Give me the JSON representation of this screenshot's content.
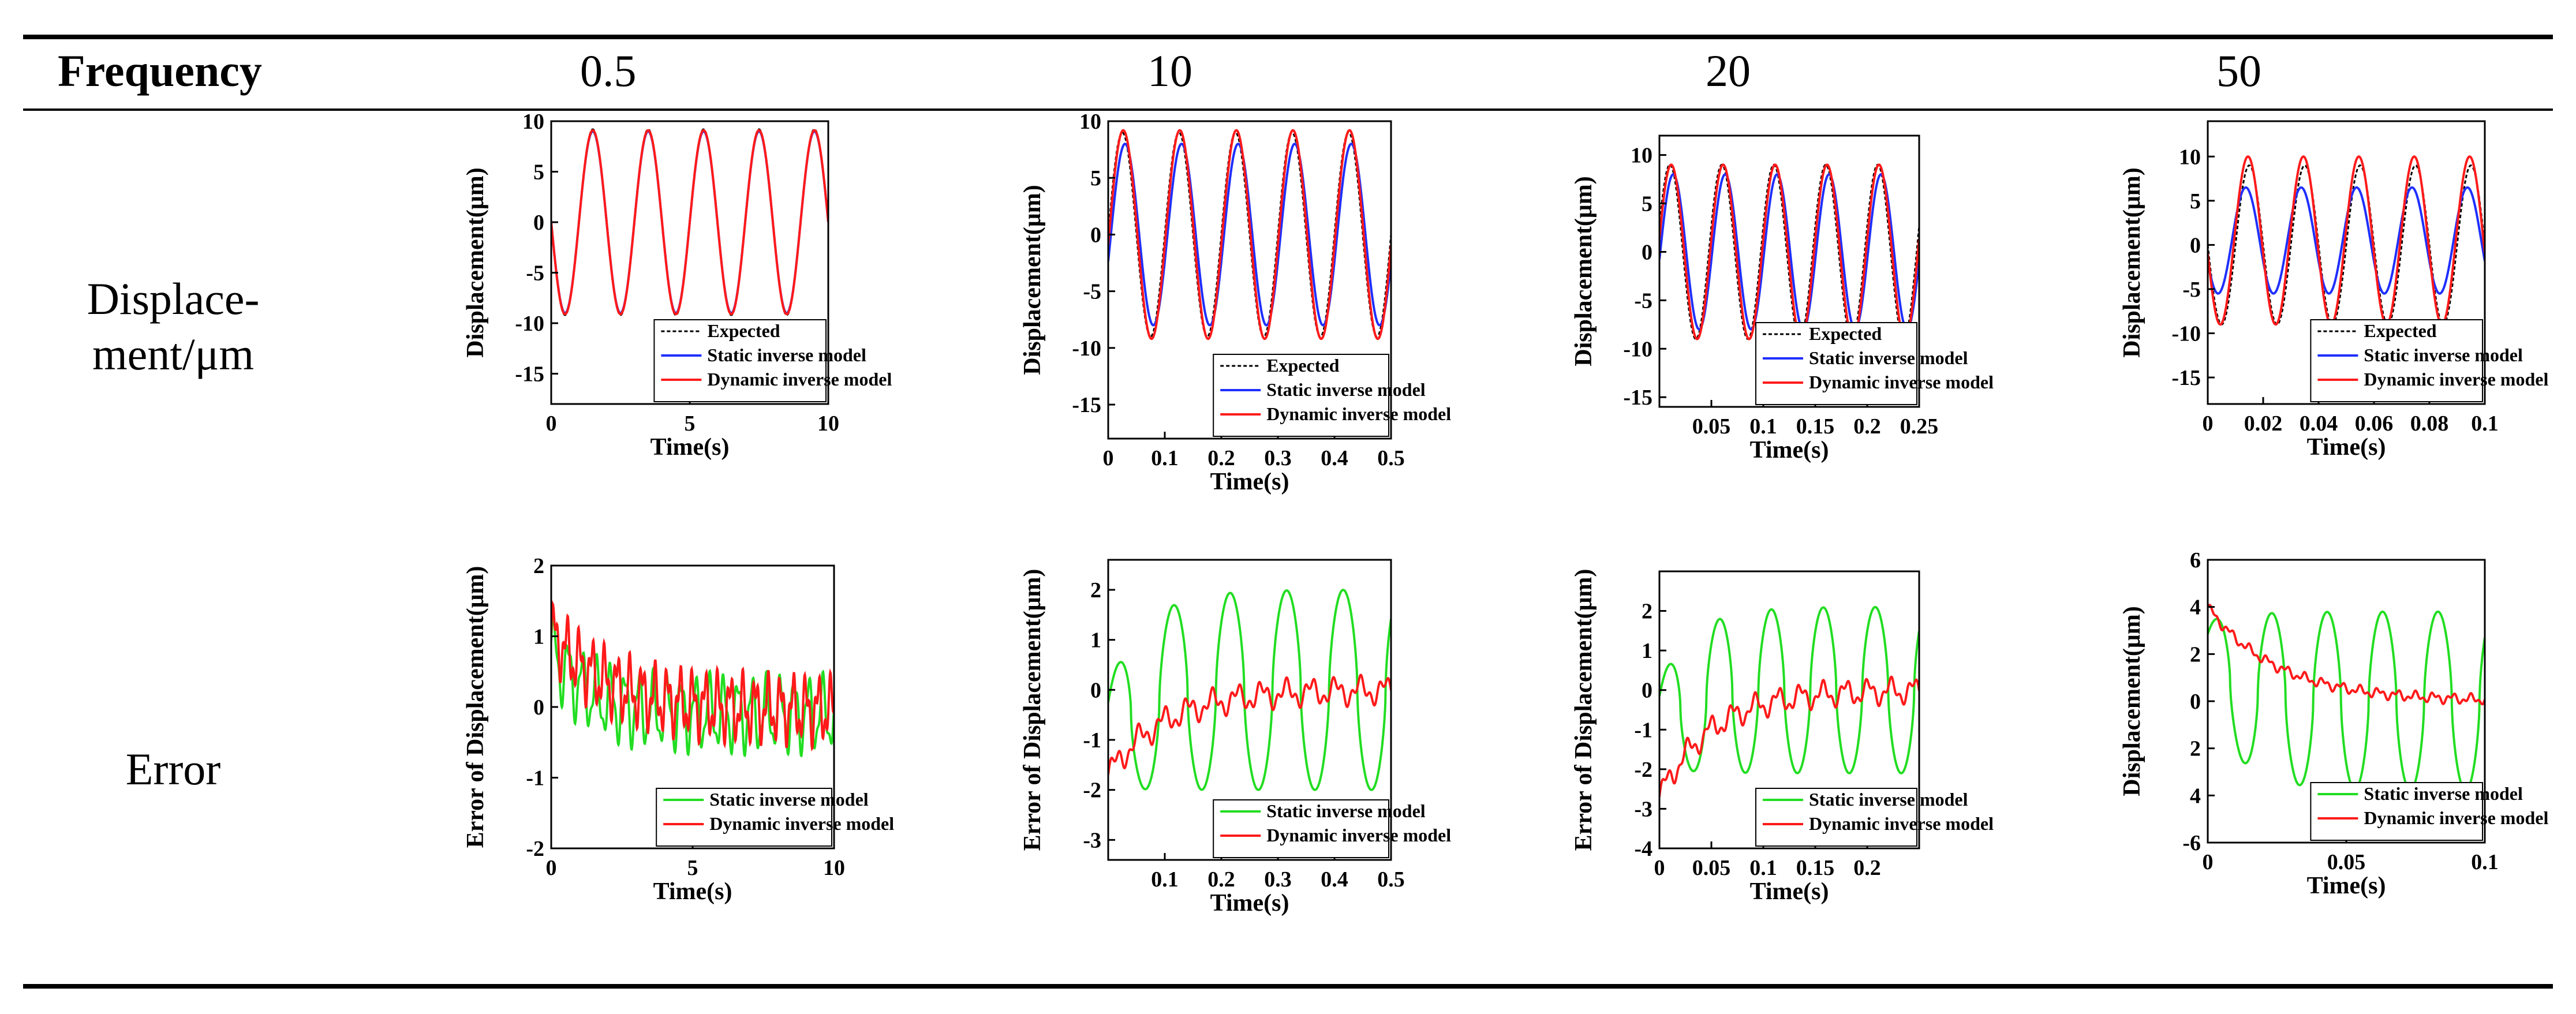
{
  "header": {
    "frequency_label": "Frequency",
    "columns": [
      "0.5",
      "10",
      "20",
      "50"
    ]
  },
  "rows": {
    "displacement_label_line1": "Displace-",
    "displacement_label_line2": "ment/μm",
    "error_label": "Error"
  },
  "colors": {
    "expected": "#000000",
    "static": "#1f2fff",
    "dynamic": "#ff1a1a",
    "static_error": "#22dd22",
    "dynamic_error": "#ff1a1a"
  },
  "chart_data": [
    {
      "id": "disp_0_5",
      "type": "line",
      "xlabel": "Time(s)",
      "ylabel": "Displacement(μm)",
      "xlim": [
        0,
        10
      ],
      "ylim": [
        -18,
        10
      ],
      "xticks": [
        0,
        5,
        10
      ],
      "yticks": [
        10,
        5,
        0,
        -5,
        -10,
        -15
      ],
      "legend": [
        "Expected",
        "Static inverse model",
        "Dynamic inverse model"
      ],
      "legend_position": "bottom-right",
      "series": [
        {
          "name": "Expected",
          "kind": "sine",
          "freq": 0.5,
          "amp": 9.2,
          "offset": 0,
          "sign": -1,
          "style": "expected"
        },
        {
          "name": "Static inverse model",
          "kind": "sine",
          "freq": 0.5,
          "amp": 9.0,
          "offset": 0,
          "sign": -1,
          "style": "static"
        },
        {
          "name": "Dynamic inverse model",
          "kind": "sine",
          "freq": 0.5,
          "amp": 9.1,
          "offset": 0,
          "sign": -1,
          "style": "dynamic"
        }
      ]
    },
    {
      "id": "disp_10",
      "type": "line",
      "xlabel": "Time(s)",
      "ylabel": "Displacement(μm)",
      "xlim": [
        0,
        0.5
      ],
      "ylim": [
        -18,
        10
      ],
      "xticks": [
        0,
        0.1,
        0.2,
        0.3,
        0.4,
        0.5
      ],
      "yticks": [
        10,
        5,
        0,
        -5,
        -10,
        -15
      ],
      "legend": [
        "Expected",
        "Static inverse model",
        "Dynamic inverse model"
      ],
      "legend_position": "bottom-right",
      "series": [
        {
          "name": "Expected",
          "kind": "sine",
          "freq": 10,
          "amp": 9.0,
          "offset": 0,
          "sign": 1,
          "style": "expected"
        },
        {
          "name": "Static inverse model",
          "kind": "sine",
          "freq": 10,
          "amp": 8.0,
          "offset": 0,
          "sign": 1,
          "phase": -0.3,
          "style": "static"
        },
        {
          "name": "Dynamic inverse model",
          "kind": "sine",
          "freq": 10,
          "amp": 9.2,
          "offset": 0,
          "sign": 1,
          "phase": -0.1,
          "style": "dynamic"
        }
      ]
    },
    {
      "id": "disp_20",
      "type": "line",
      "xlabel": "Time(s)",
      "ylabel": "Displacement(μm)",
      "xlim": [
        0,
        0.25
      ],
      "ylim": [
        -16,
        12
      ],
      "xticks": [
        0.05,
        0.1,
        0.15,
        0.2,
        0.25
      ],
      "yticks": [
        10,
        5,
        0,
        -5,
        -10,
        -15
      ],
      "legend": [
        "Expected",
        "Static inverse model",
        "Dynamic inverse model"
      ],
      "legend_position": "bottom-right",
      "series": [
        {
          "name": "Expected",
          "kind": "sine",
          "freq": 20,
          "amp": 9.0,
          "offset": 0,
          "sign": 1,
          "phase": 0.3,
          "style": "expected"
        },
        {
          "name": "Static inverse model",
          "kind": "sine",
          "freq": 20,
          "amp": 8.0,
          "offset": 0,
          "sign": 1,
          "phase": -0.1,
          "style": "static"
        },
        {
          "name": "Dynamic inverse model",
          "kind": "sine",
          "freq": 20,
          "amp": 9.0,
          "offset": 0,
          "sign": 1,
          "phase": 0.15,
          "style": "dynamic"
        }
      ]
    },
    {
      "id": "disp_50",
      "type": "line",
      "xlabel": "Time(s)",
      "ylabel": "Displacement(μm)",
      "xlim": [
        0,
        0.1
      ],
      "ylim": [
        -18,
        14
      ],
      "xticks": [
        0,
        0.02,
        0.04,
        0.06,
        0.08,
        0.1
      ],
      "yticks": [
        10,
        5,
        0,
        -5,
        -10,
        -15
      ],
      "legend": [
        "Expected",
        "Static inverse model",
        "Dynamic inverse model"
      ],
      "legend_position": "bottom-right",
      "series": [
        {
          "name": "Expected",
          "kind": "sine",
          "freq": 50,
          "amp": 9.0,
          "offset": 0,
          "sign": -1,
          "phase": 0.0,
          "style": "expected"
        },
        {
          "name": "Static inverse model",
          "kind": "sine",
          "freq": 50,
          "amp": 6.0,
          "offset": 0.5,
          "sign": -1,
          "phase": 0.4,
          "style": "static"
        },
        {
          "name": "Dynamic inverse model",
          "kind": "sine",
          "freq": 50,
          "amp": 9.5,
          "offset": 0.5,
          "sign": -1,
          "phase": 0.15,
          "style": "dynamic"
        }
      ]
    },
    {
      "id": "err_0_5",
      "type": "line",
      "xlabel": "Time(s)",
      "ylabel": "Error of Displacement(μm)",
      "xlim": [
        0,
        10
      ],
      "ylim": [
        -2,
        2
      ],
      "xticks": [
        0,
        5,
        10
      ],
      "yticks": [
        2,
        1,
        0,
        -1,
        -2
      ],
      "legend": [
        "Static inverse model",
        "Dynamic inverse model"
      ],
      "legend_position": "bottom-right",
      "series": [
        {
          "name": "Static inverse model",
          "kind": "errstatic",
          "freq": 0.5,
          "amp": 0.7,
          "start": 0.9,
          "style": "static_error"
        },
        {
          "name": "Dynamic inverse model",
          "kind": "errdyn",
          "freq": 0.5,
          "amp": 0.4,
          "start": 1.2,
          "style": "dynamic_error"
        }
      ]
    },
    {
      "id": "err_10",
      "type": "line",
      "xlabel": "Time(s)",
      "ylabel": "Error of Displacement(μm)",
      "xlim": [
        0,
        0.5
      ],
      "ylim": [
        -3.4,
        2.6
      ],
      "xticks": [
        0.1,
        0.2,
        0.3,
        0.4,
        0.5
      ],
      "yticks": [
        2,
        1,
        0,
        -1,
        -2,
        -3
      ],
      "legend": [
        "Static inverse model",
        "Dynamic inverse model"
      ],
      "legend_position": "bottom-right",
      "series": [
        {
          "name": "Static inverse model",
          "kind": "errstatic",
          "freq": 10,
          "amp": 2.0,
          "start": -1.6,
          "style": "static_error"
        },
        {
          "name": "Dynamic inverse model",
          "kind": "errdyn",
          "freq": 10,
          "amp": 0.2,
          "start": -1.7,
          "style": "dynamic_error"
        }
      ]
    },
    {
      "id": "err_20",
      "type": "line",
      "xlabel": "Time(s)",
      "ylabel": "Error of Displacement(μm)",
      "xlim": [
        0,
        0.25
      ],
      "ylim": [
        -4,
        3
      ],
      "xticks": [
        0,
        0.05,
        0.1,
        0.15,
        0.2
      ],
      "yticks": [
        2,
        1,
        0,
        -1,
        -2,
        -3,
        -4
      ],
      "legend": [
        "Static inverse model",
        "Dynamic inverse model"
      ],
      "legend_position": "bottom-right",
      "series": [
        {
          "name": "Static inverse model",
          "kind": "errstatic",
          "freq": 20,
          "amp": 2.1,
          "start": -1.5,
          "style": "static_error"
        },
        {
          "name": "Dynamic inverse model",
          "kind": "errdyn",
          "freq": 20,
          "amp": 0.25,
          "start": -2.7,
          "style": "dynamic_error"
        }
      ]
    },
    {
      "id": "err_50",
      "type": "line",
      "xlabel": "Time(s)",
      "ylabel": "Displacement(μm)",
      "xlim": [
        0,
        0.1
      ],
      "ylim": [
        -6,
        6
      ],
      "xticks": [
        0,
        0.05,
        0.1
      ],
      "yticks": [
        6,
        4,
        2,
        0,
        2,
        4,
        -6
      ],
      "legend": [
        "Static inverse model",
        "Dynamic inverse model"
      ],
      "legend_position": "bottom-right",
      "series": [
        {
          "name": "Static inverse model",
          "kind": "errstatic",
          "freq": 50,
          "amp": 3.8,
          "offset": 0.7,
          "start": 2.5,
          "style": "static_error"
        },
        {
          "name": "Dynamic inverse model",
          "kind": "errdyn50",
          "freq": 50,
          "amp": 0.2,
          "start": 2.5,
          "style": "dynamic_error"
        }
      ]
    }
  ]
}
